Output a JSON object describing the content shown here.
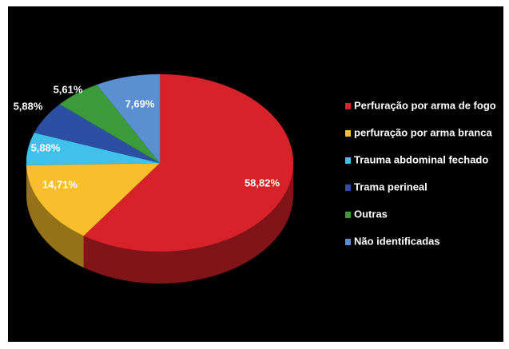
{
  "chart_data": {
    "type": "pie",
    "categories": [
      "Perfuração por arma de fogo",
      "perfuração por arma branca",
      "Trauma abdominal fechado",
      "Trama perineal",
      "Outras",
      "Não identificadas"
    ],
    "values": [
      58.82,
      14.71,
      5.88,
      5.88,
      5.61,
      7.69
    ],
    "value_labels": [
      "58,82%",
      "14,71%",
      "5,88%",
      "5,88%",
      "5,61%",
      "7,69%"
    ],
    "colors": [
      "#d7222a",
      "#f8be2c",
      "#3fc1ec",
      "#2d4fa3",
      "#3b9b3b",
      "#5a8fd2"
    ],
    "legend": "right"
  }
}
